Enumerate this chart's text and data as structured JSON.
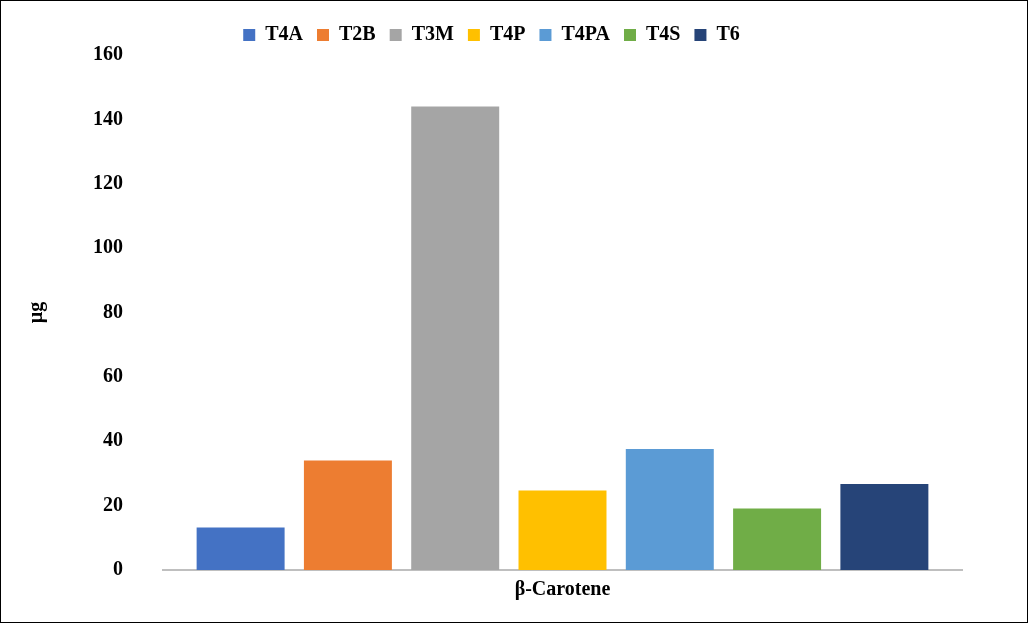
{
  "chart_data": {
    "type": "bar",
    "categories": [
      "β-Carotene"
    ],
    "ylabel": "µg",
    "ylim": [
      0,
      160
    ],
    "yticks": [
      0,
      20,
      40,
      60,
      80,
      100,
      120,
      140,
      160
    ],
    "grid": false,
    "legend": "top",
    "series": [
      {
        "name": "T4A",
        "color": "#4472c4",
        "values": [
          13.2
        ]
      },
      {
        "name": "T2B",
        "color": "#ed7d31",
        "values": [
          34
        ]
      },
      {
        "name": "T3M",
        "color": "#a5a5a5",
        "values": [
          144
        ]
      },
      {
        "name": "T4P",
        "color": "#ffc000",
        "values": [
          24.7
        ]
      },
      {
        "name": "T4PA",
        "color": "#5b9bd5",
        "values": [
          37.6
        ]
      },
      {
        "name": "T4S",
        "color": "#70ad47",
        "values": [
          19.1
        ]
      },
      {
        "name": "T6",
        "color": "#264478",
        "values": [
          26.7
        ]
      }
    ]
  }
}
